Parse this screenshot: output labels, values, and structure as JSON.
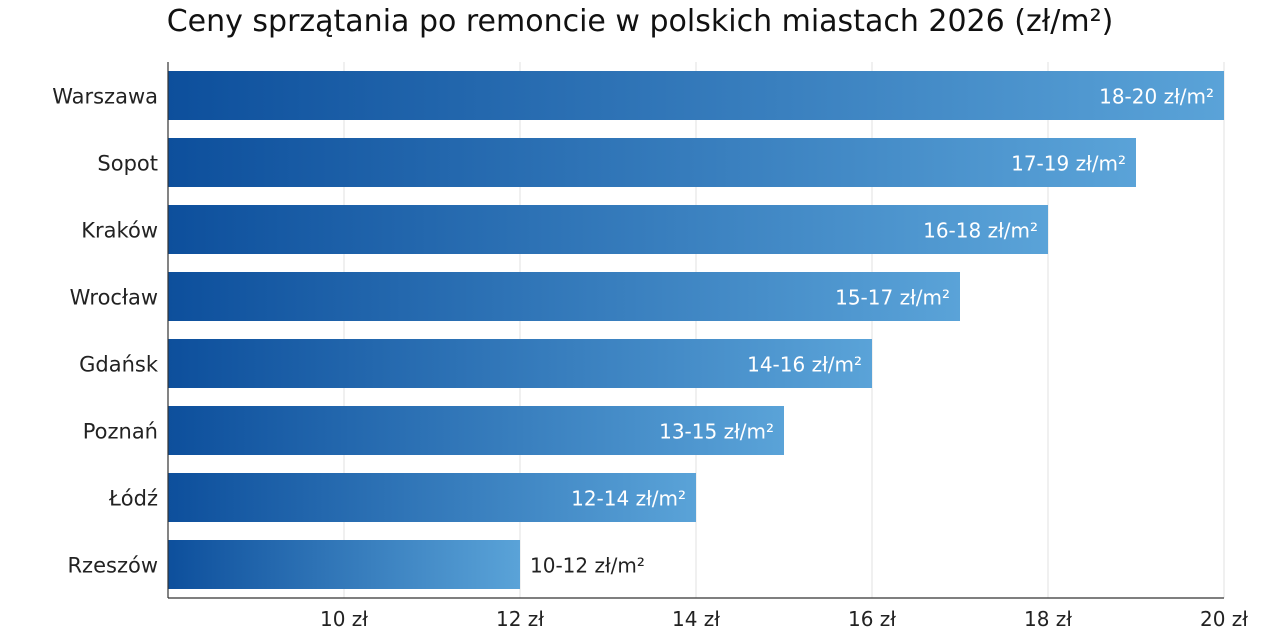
{
  "chart_data": {
    "type": "bar",
    "orientation": "horizontal",
    "title": "Ceny sprzątania po remoncie w polskich miastach 2026 (zł/m²)",
    "xlabel": "",
    "ylabel": "",
    "xlim": [
      8,
      20
    ],
    "x_ticks": [
      10,
      12,
      14,
      16,
      18,
      20
    ],
    "x_tick_labels": [
      "10 zł",
      "12 zł",
      "14 zł",
      "16 zł",
      "18 zł",
      "20 zł"
    ],
    "grid": true,
    "categories": [
      "Warszawa",
      "Sopot",
      "Kraków",
      "Wrocław",
      "Gdańsk",
      "Poznań",
      "Łódź",
      "Rzeszów"
    ],
    "ranges": [
      [
        18,
        20
      ],
      [
        17,
        19
      ],
      [
        16,
        18
      ],
      [
        15,
        17
      ],
      [
        14,
        16
      ],
      [
        13,
        15
      ],
      [
        12,
        14
      ],
      [
        10,
        12
      ]
    ],
    "values": [
      20,
      19,
      18,
      17,
      16,
      15,
      14,
      12
    ],
    "data_labels": [
      "18-20 zł/m²",
      "17-19 zł/m²",
      "16-18 zł/m²",
      "15-17 zł/m²",
      "14-16 zł/m²",
      "13-15 zł/m²",
      "12-14 zł/m²",
      "10-12 zł/m²"
    ],
    "colors": {
      "bar_start": "#0d4f9c",
      "bar_end": "#5aa3d8",
      "label_inside": "#ffffff",
      "label_outside": "#222222",
      "grid": "#e2e2e2",
      "axis": "#333333"
    }
  }
}
